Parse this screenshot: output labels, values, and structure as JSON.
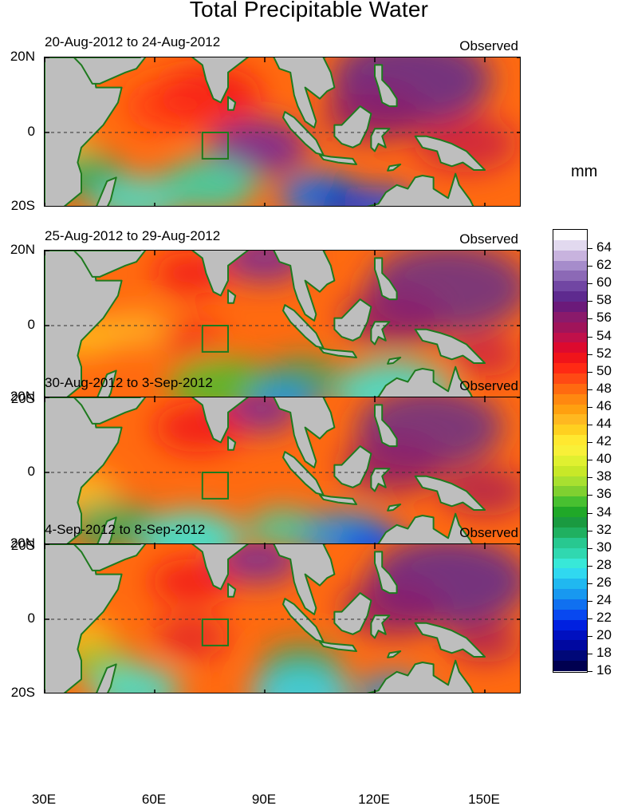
{
  "title": "Total Precipitable Water",
  "panels": [
    {
      "period": "20-Aug-2012 to 24-Aug-2012",
      "label": "Observed"
    },
    {
      "period": "25-Aug-2012 to 29-Aug-2012",
      "label": "Observed"
    },
    {
      "period": "30-Aug-2012 to 3-Sep-2012",
      "label": "Observed"
    },
    {
      "period": "4-Sep-2012 to 8-Sep-2012",
      "label": "Observed"
    }
  ],
  "lat_labels": [
    "20N",
    "0",
    "20S"
  ],
  "lon_labels": [
    "30E",
    "60E",
    "90E",
    "120E",
    "150E"
  ],
  "units": "mm",
  "colorbar": {
    "labels": [
      "64",
      "62",
      "60",
      "58",
      "56",
      "54",
      "52",
      "50",
      "48",
      "46",
      "44",
      "42",
      "40",
      "38",
      "36",
      "34",
      "32",
      "30",
      "28",
      "26",
      "24",
      "22",
      "20",
      "18",
      "16"
    ],
    "colors": [
      "#ffffff",
      "#e2d9ef",
      "#c8b3de",
      "#a68ccb",
      "#8c69b6",
      "#7146a3",
      "#5e2a8f",
      "#6b1a7a",
      "#8a1a6b",
      "#a0145a",
      "#c0104a",
      "#dd0a2e",
      "#f0141a",
      "#ff2a14",
      "#ff4a14",
      "#ff6a10",
      "#ff8810",
      "#ffa010",
      "#ffb820",
      "#ffd020",
      "#ffe830",
      "#f8f038",
      "#e0f030",
      "#c8e828",
      "#a8e030",
      "#80d030",
      "#48c030",
      "#20a828",
      "#1a9a40",
      "#20b060",
      "#28c890",
      "#30d8b0",
      "#38e8d8",
      "#30d8f0",
      "#20b8f0",
      "#1898f0",
      "#1070f0",
      "#0848f0",
      "#0020e0",
      "#0010c0",
      "#0008a0",
      "#000878",
      "#000050"
    ]
  },
  "map": {
    "lon_range": [
      30,
      160
    ],
    "lat_range": [
      -20,
      20
    ],
    "land_color": "#bebebe",
    "coast_color": "#1e7a1e"
  }
}
